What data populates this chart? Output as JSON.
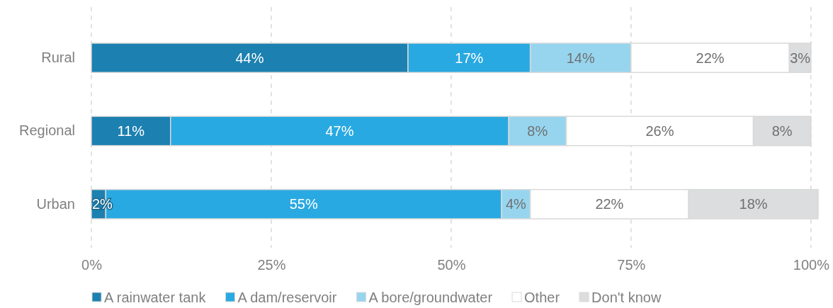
{
  "chart_data": {
    "type": "bar",
    "orientation": "horizontal",
    "stacked": true,
    "categories": [
      "Rural",
      "Regional",
      "Urban"
    ],
    "series": [
      {
        "name": "A rainwater tank",
        "color": "#1c80b0",
        "values": [
          44,
          11,
          2
        ],
        "value_labels": [
          "44%",
          "11%",
          "2%"
        ]
      },
      {
        "name": "A dam/reservoir",
        "color": "#29a9e1",
        "values": [
          17,
          47,
          55
        ],
        "value_labels": [
          "17%",
          "47%",
          "55%"
        ]
      },
      {
        "name": "A bore/groundwater",
        "color": "#97d5ef",
        "values": [
          14,
          8,
          4
        ],
        "value_labels": [
          "14%",
          "8%",
          "4%"
        ]
      },
      {
        "name": "Other",
        "color": "#ffffff",
        "values": [
          22,
          26,
          22
        ],
        "value_labels": [
          "22%",
          "26%",
          "22%"
        ]
      },
      {
        "name": "Don't know",
        "color": "#dcdddf",
        "values": [
          3,
          8,
          18
        ],
        "value_labels": [
          "3%",
          "8%",
          "18%"
        ]
      }
    ],
    "xlim": [
      0,
      101
    ],
    "xticks": [
      {
        "value": 0,
        "label": "0%"
      },
      {
        "value": 25,
        "label": "25%"
      },
      {
        "value": 50,
        "label": "50%"
      },
      {
        "value": 75,
        "label": "75%"
      },
      {
        "value": 100,
        "label": "100%"
      }
    ],
    "grid": "x",
    "legend": "bottom"
  }
}
